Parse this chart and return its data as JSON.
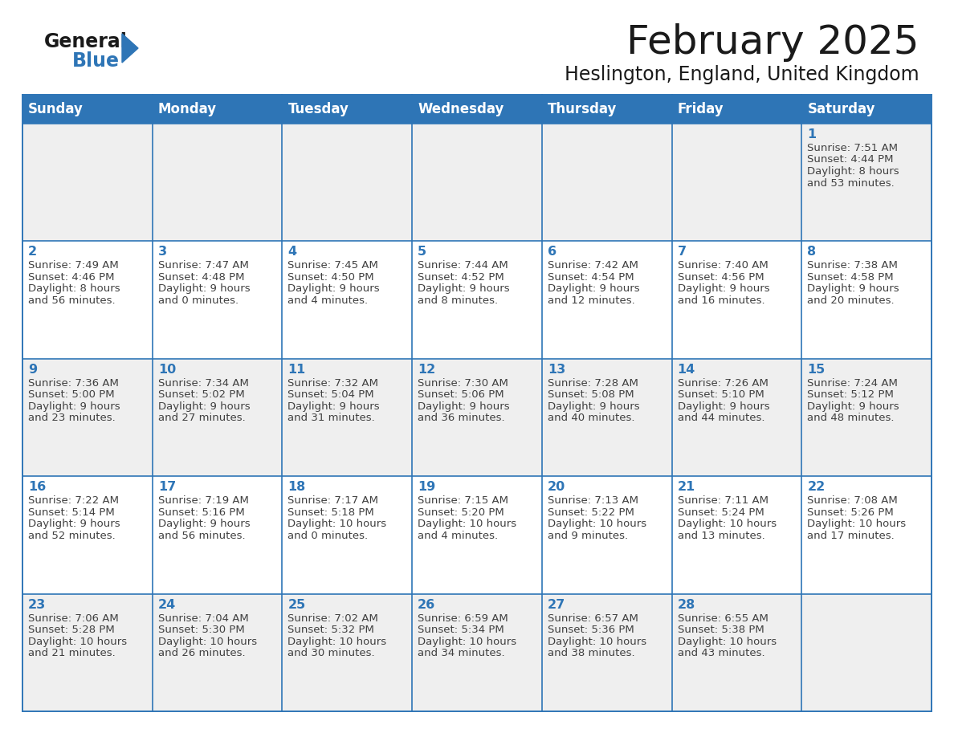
{
  "title": "February 2025",
  "subtitle": "Heslington, England, United Kingdom",
  "header_bg": "#2E75B6",
  "header_text_color": "#FFFFFF",
  "row_bg_odd": "#EFEFEF",
  "row_bg_even": "#FFFFFF",
  "border_color": "#2E75B6",
  "day_names": [
    "Sunday",
    "Monday",
    "Tuesday",
    "Wednesday",
    "Thursday",
    "Friday",
    "Saturday"
  ],
  "title_color": "#1a1a1a",
  "subtitle_color": "#1a1a1a",
  "day_number_color": "#2E75B6",
  "cell_text_color": "#404040",
  "logo_general_color": "#1a1a1a",
  "logo_blue_color": "#2E75B6",
  "logo_triangle_color": "#2E75B6",
  "calendar": [
    [
      null,
      null,
      null,
      null,
      null,
      null,
      {
        "day": 1,
        "sunrise": "7:51 AM",
        "sunset": "4:44 PM",
        "daylight_l1": "Daylight: 8 hours",
        "daylight_l2": "and 53 minutes."
      }
    ],
    [
      {
        "day": 2,
        "sunrise": "7:49 AM",
        "sunset": "4:46 PM",
        "daylight_l1": "Daylight: 8 hours",
        "daylight_l2": "and 56 minutes."
      },
      {
        "day": 3,
        "sunrise": "7:47 AM",
        "sunset": "4:48 PM",
        "daylight_l1": "Daylight: 9 hours",
        "daylight_l2": "and 0 minutes."
      },
      {
        "day": 4,
        "sunrise": "7:45 AM",
        "sunset": "4:50 PM",
        "daylight_l1": "Daylight: 9 hours",
        "daylight_l2": "and 4 minutes."
      },
      {
        "day": 5,
        "sunrise": "7:44 AM",
        "sunset": "4:52 PM",
        "daylight_l1": "Daylight: 9 hours",
        "daylight_l2": "and 8 minutes."
      },
      {
        "day": 6,
        "sunrise": "7:42 AM",
        "sunset": "4:54 PM",
        "daylight_l1": "Daylight: 9 hours",
        "daylight_l2": "and 12 minutes."
      },
      {
        "day": 7,
        "sunrise": "7:40 AM",
        "sunset": "4:56 PM",
        "daylight_l1": "Daylight: 9 hours",
        "daylight_l2": "and 16 minutes."
      },
      {
        "day": 8,
        "sunrise": "7:38 AM",
        "sunset": "4:58 PM",
        "daylight_l1": "Daylight: 9 hours",
        "daylight_l2": "and 20 minutes."
      }
    ],
    [
      {
        "day": 9,
        "sunrise": "7:36 AM",
        "sunset": "5:00 PM",
        "daylight_l1": "Daylight: 9 hours",
        "daylight_l2": "and 23 minutes."
      },
      {
        "day": 10,
        "sunrise": "7:34 AM",
        "sunset": "5:02 PM",
        "daylight_l1": "Daylight: 9 hours",
        "daylight_l2": "and 27 minutes."
      },
      {
        "day": 11,
        "sunrise": "7:32 AM",
        "sunset": "5:04 PM",
        "daylight_l1": "Daylight: 9 hours",
        "daylight_l2": "and 31 minutes."
      },
      {
        "day": 12,
        "sunrise": "7:30 AM",
        "sunset": "5:06 PM",
        "daylight_l1": "Daylight: 9 hours",
        "daylight_l2": "and 36 minutes."
      },
      {
        "day": 13,
        "sunrise": "7:28 AM",
        "sunset": "5:08 PM",
        "daylight_l1": "Daylight: 9 hours",
        "daylight_l2": "and 40 minutes."
      },
      {
        "day": 14,
        "sunrise": "7:26 AM",
        "sunset": "5:10 PM",
        "daylight_l1": "Daylight: 9 hours",
        "daylight_l2": "and 44 minutes."
      },
      {
        "day": 15,
        "sunrise": "7:24 AM",
        "sunset": "5:12 PM",
        "daylight_l1": "Daylight: 9 hours",
        "daylight_l2": "and 48 minutes."
      }
    ],
    [
      {
        "day": 16,
        "sunrise": "7:22 AM",
        "sunset": "5:14 PM",
        "daylight_l1": "Daylight: 9 hours",
        "daylight_l2": "and 52 minutes."
      },
      {
        "day": 17,
        "sunrise": "7:19 AM",
        "sunset": "5:16 PM",
        "daylight_l1": "Daylight: 9 hours",
        "daylight_l2": "and 56 minutes."
      },
      {
        "day": 18,
        "sunrise": "7:17 AM",
        "sunset": "5:18 PM",
        "daylight_l1": "Daylight: 10 hours",
        "daylight_l2": "and 0 minutes."
      },
      {
        "day": 19,
        "sunrise": "7:15 AM",
        "sunset": "5:20 PM",
        "daylight_l1": "Daylight: 10 hours",
        "daylight_l2": "and 4 minutes."
      },
      {
        "day": 20,
        "sunrise": "7:13 AM",
        "sunset": "5:22 PM",
        "daylight_l1": "Daylight: 10 hours",
        "daylight_l2": "and 9 minutes."
      },
      {
        "day": 21,
        "sunrise": "7:11 AM",
        "sunset": "5:24 PM",
        "daylight_l1": "Daylight: 10 hours",
        "daylight_l2": "and 13 minutes."
      },
      {
        "day": 22,
        "sunrise": "7:08 AM",
        "sunset": "5:26 PM",
        "daylight_l1": "Daylight: 10 hours",
        "daylight_l2": "and 17 minutes."
      }
    ],
    [
      {
        "day": 23,
        "sunrise": "7:06 AM",
        "sunset": "5:28 PM",
        "daylight_l1": "Daylight: 10 hours",
        "daylight_l2": "and 21 minutes."
      },
      {
        "day": 24,
        "sunrise": "7:04 AM",
        "sunset": "5:30 PM",
        "daylight_l1": "Daylight: 10 hours",
        "daylight_l2": "and 26 minutes."
      },
      {
        "day": 25,
        "sunrise": "7:02 AM",
        "sunset": "5:32 PM",
        "daylight_l1": "Daylight: 10 hours",
        "daylight_l2": "and 30 minutes."
      },
      {
        "day": 26,
        "sunrise": "6:59 AM",
        "sunset": "5:34 PM",
        "daylight_l1": "Daylight: 10 hours",
        "daylight_l2": "and 34 minutes."
      },
      {
        "day": 27,
        "sunrise": "6:57 AM",
        "sunset": "5:36 PM",
        "daylight_l1": "Daylight: 10 hours",
        "daylight_l2": "and 38 minutes."
      },
      {
        "day": 28,
        "sunrise": "6:55 AM",
        "sunset": "5:38 PM",
        "daylight_l1": "Daylight: 10 hours",
        "daylight_l2": "and 43 minutes."
      },
      null
    ]
  ]
}
